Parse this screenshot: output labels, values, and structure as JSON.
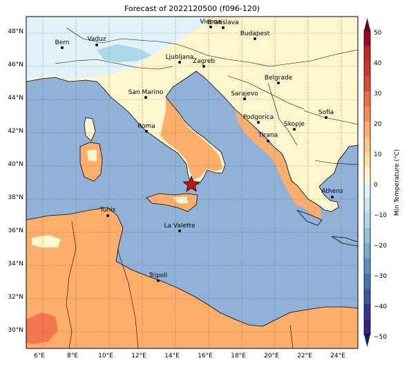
{
  "title": "Forecast of 2022120500 (f096-120)",
  "map": {
    "lon_range": [
      5,
      25
    ],
    "lat_range": [
      29,
      49
    ],
    "lon_ticks": [
      "6°E",
      "8°E",
      "10°E",
      "12°E",
      "14°E",
      "16°E",
      "18°E",
      "20°E",
      "22°E",
      "24°E"
    ],
    "lat_ticks": [
      "30°N",
      "32°N",
      "34°N",
      "36°N",
      "38°N",
      "40°N",
      "42°N",
      "44°N",
      "46°N",
      "48°N"
    ],
    "gridlines": "dotted",
    "cities": [
      {
        "name": "Bern",
        "lon": 7.45,
        "lat": 46.95
      },
      {
        "name": "Vaduz",
        "lon": 9.52,
        "lat": 47.14
      },
      {
        "name": "Ljubljana",
        "lon": 14.51,
        "lat": 46.06
      },
      {
        "name": "Zagreb",
        "lon": 15.98,
        "lat": 45.81
      },
      {
        "name": "Vienna",
        "lon": 16.37,
        "lat": 48.21
      },
      {
        "name": "Bratislava",
        "lon": 17.11,
        "lat": 48.15
      },
      {
        "name": "Budapest",
        "lon": 19.04,
        "lat": 47.5
      },
      {
        "name": "Belgrade",
        "lon": 20.46,
        "lat": 44.82
      },
      {
        "name": "Sarajevo",
        "lon": 18.41,
        "lat": 43.86
      },
      {
        "name": "San Marino",
        "lon": 12.45,
        "lat": 43.94
      },
      {
        "name": "Podgorica",
        "lon": 19.26,
        "lat": 42.44
      },
      {
        "name": "Skopje",
        "lon": 21.43,
        "lat": 42.0
      },
      {
        "name": "Sofia",
        "lon": 23.32,
        "lat": 42.7
      },
      {
        "name": "Roma",
        "lon": 12.5,
        "lat": 41.9
      },
      {
        "name": "Tirana",
        "lon": 19.82,
        "lat": 41.33
      },
      {
        "name": "Athens",
        "lon": 23.73,
        "lat": 37.98
      },
      {
        "name": "Tunis",
        "lon": 10.18,
        "lat": 36.81
      },
      {
        "name": "La Valette",
        "lon": 14.51,
        "lat": 35.9
      },
      {
        "name": "Tripoli",
        "lon": 13.19,
        "lat": 32.89
      }
    ],
    "marker": {
      "symbol": "star",
      "lon": 15.2,
      "lat": 38.8,
      "color": "#cc1111"
    }
  },
  "colorbar": {
    "label": "Min Temperature (°C)",
    "ticks": [
      "50",
      "40",
      "30",
      "20",
      "10",
      "0",
      "−10",
      "−20",
      "−30",
      "−40",
      "−50"
    ],
    "colors": [
      "#a50026",
      "#d73027",
      "#f46d43",
      "#fdae61",
      "#fee090",
      "#e0f3f8",
      "#abd9e9",
      "#74add1",
      "#4575b4",
      "#313695"
    ],
    "map_fills": {
      "sea": "#91b2d8",
      "warm": "#fdae6b",
      "hot": "#f4764d",
      "mild": "#fef6cc",
      "cool": "#e0f3f8",
      "cold": "#abd9e9"
    }
  }
}
